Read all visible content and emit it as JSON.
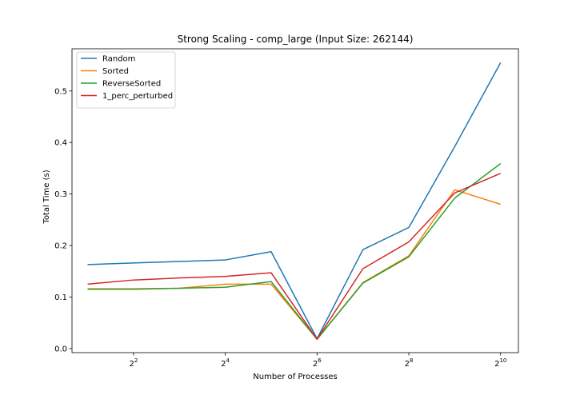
{
  "chart_data": {
    "type": "line",
    "title": "Strong Scaling - comp_large (Input Size: 262144)",
    "xlabel": "Number of Processes",
    "ylabel": "Total Time (s)",
    "x_scale": "log2",
    "x": [
      2,
      4,
      8,
      16,
      32,
      64,
      128,
      256,
      512,
      1024
    ],
    "xlim": [
      1.58,
      1340
    ],
    "ylim": [
      -0.008,
      0.582
    ],
    "x_ticks": [
      {
        "value": 4,
        "base": "2",
        "exp": "2"
      },
      {
        "value": 16,
        "base": "2",
        "exp": "4"
      },
      {
        "value": 64,
        "base": "2",
        "exp": "6"
      },
      {
        "value": 256,
        "base": "2",
        "exp": "8"
      },
      {
        "value": 1024,
        "base": "2",
        "exp": "10"
      }
    ],
    "y_ticks": [
      {
        "value": 0.0,
        "label": "0.0"
      },
      {
        "value": 0.1,
        "label": "0.1"
      },
      {
        "value": 0.2,
        "label": "0.2"
      },
      {
        "value": 0.3,
        "label": "0.3"
      },
      {
        "value": 0.4,
        "label": "0.4"
      },
      {
        "value": 0.5,
        "label": "0.5"
      }
    ],
    "grid": false,
    "legend_position": "top-left",
    "series": [
      {
        "name": "Random",
        "color": "#1f77b4",
        "values": [
          0.163,
          0.166,
          0.169,
          0.172,
          0.188,
          0.019,
          0.192,
          0.235,
          0.392,
          0.555
        ]
      },
      {
        "name": "Sorted",
        "color": "#ff7f0e",
        "values": [
          0.116,
          0.116,
          0.117,
          0.125,
          0.125,
          0.018,
          0.128,
          0.18,
          0.308,
          0.28
        ]
      },
      {
        "name": "ReverseSorted",
        "color": "#2ca02c",
        "values": [
          0.115,
          0.115,
          0.117,
          0.119,
          0.13,
          0.018,
          0.127,
          0.178,
          0.292,
          0.359
        ]
      },
      {
        "name": "1_perc_perturbed",
        "color": "#d62728",
        "values": [
          0.125,
          0.133,
          0.137,
          0.14,
          0.147,
          0.018,
          0.155,
          0.207,
          0.302,
          0.34
        ]
      }
    ]
  }
}
